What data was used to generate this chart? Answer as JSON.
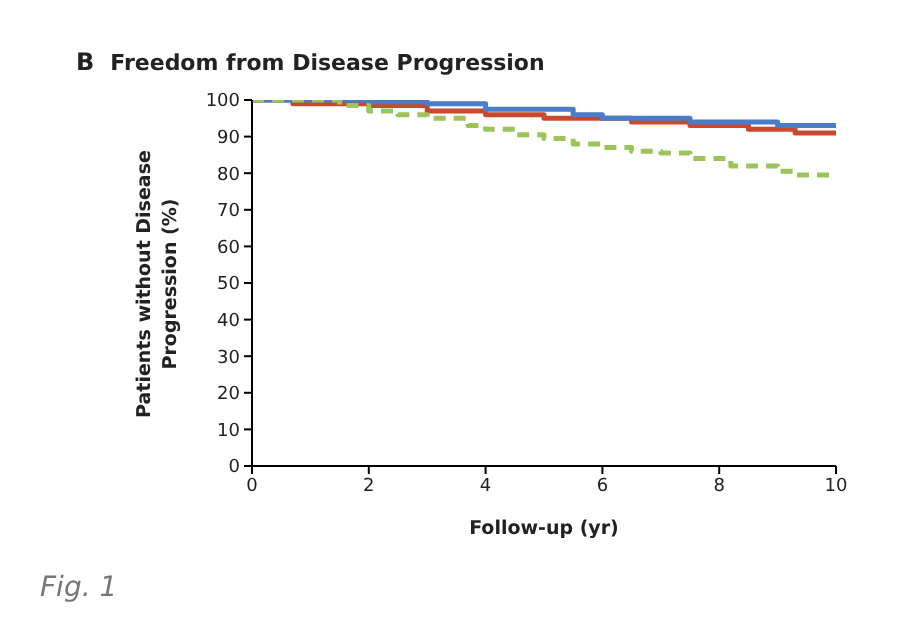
{
  "chart_data": {
    "type": "step",
    "title": "Freedom from Disease Progression",
    "xlabel": "Follow-up (yr)",
    "ylabel": "Patients without Disease Progression (%)",
    "annotations": [
      "B",
      "Fig. 1"
    ],
    "xlim": [
      0,
      10
    ],
    "xticks": [
      0,
      2,
      4,
      6,
      8,
      10
    ],
    "ylim": [
      0,
      100
    ],
    "yticks": [
      0,
      10,
      20,
      30,
      40,
      50,
      60,
      70,
      80,
      90,
      100
    ],
    "grid": false,
    "legend": false,
    "marker": "none",
    "series": [
      {
        "color": "#c8492e",
        "line_style": "solid",
        "x": [
          0,
          0.7,
          2,
          3,
          4,
          5,
          6.5,
          7.5,
          8.5,
          9.3,
          10
        ],
        "values": [
          100,
          99,
          98.5,
          97,
          96,
          95,
          94,
          93,
          92,
          91,
          90.5
        ]
      },
      {
        "color": "#4a7cc8",
        "line_style": "solid",
        "x": [
          0,
          2,
          3,
          4,
          5.5,
          6,
          7.5,
          9,
          10
        ],
        "values": [
          100,
          99.5,
          99,
          97.5,
          96,
          95,
          94,
          93,
          92.5
        ]
      },
      {
        "color": "#9cc45a",
        "line_style": "dashed",
        "x": [
          0,
          1.5,
          2,
          2.5,
          3,
          3.7,
          4,
          4.5,
          5,
          5.5,
          6,
          6.5,
          7,
          7.5,
          8.2,
          9,
          9.3,
          10
        ],
        "values": [
          100,
          98.5,
          97,
          96,
          95,
          93,
          92,
          90.5,
          89.5,
          88,
          87,
          86,
          85.5,
          84,
          82,
          80.5,
          79.5,
          79.5
        ]
      }
    ]
  }
}
